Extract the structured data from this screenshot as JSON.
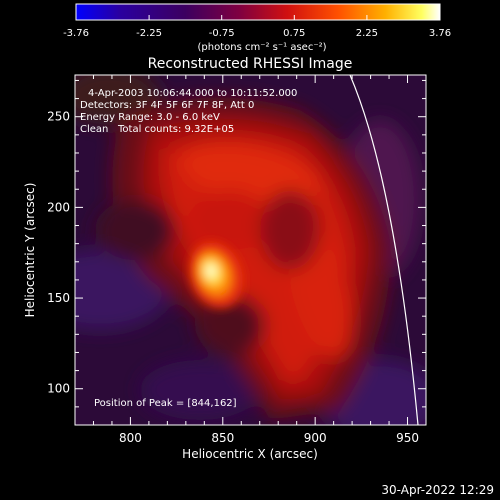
{
  "chart_data": {
    "type": "heatmap",
    "title": "Reconstructed RHESSI Image",
    "xlabel": "Heliocentric X (arcsec)",
    "ylabel": "Heliocentric Y (arcsec)",
    "xlim": [
      770,
      960
    ],
    "ylim": [
      80,
      273
    ],
    "xticks": [
      "800",
      "850",
      "900",
      "950"
    ],
    "yticks": [
      "100",
      "150",
      "200",
      "250"
    ],
    "colorbar": {
      "ticks": [
        "-3.76",
        "-2.25",
        "-0.75",
        "0.75",
        "2.25",
        "3.76"
      ],
      "range": [
        -3.76,
        3.76
      ],
      "units": "(photons cm⁻² s⁻¹ asec⁻²)",
      "colormap": [
        "#0000ff",
        "#2a0070",
        "#3a0060",
        "#7a0040",
        "#d01010",
        "#ff5000",
        "#ffb000",
        "#ffff60",
        "#ffffff"
      ]
    },
    "annotations": [
      "4-Apr-2003 10:06:44.000 to 10:11:52.000",
      "Detectors: 3F 4F 5F 6F 7F 8F, Att 0",
      "Energy Range: 3.0 - 6.0 keV",
      "Clean",
      "Total counts: 9.32E+05",
      "Position of Peak = [844,162]"
    ],
    "peak": [
      844,
      162
    ],
    "timestamp": "30-Apr-2022 12:29"
  }
}
